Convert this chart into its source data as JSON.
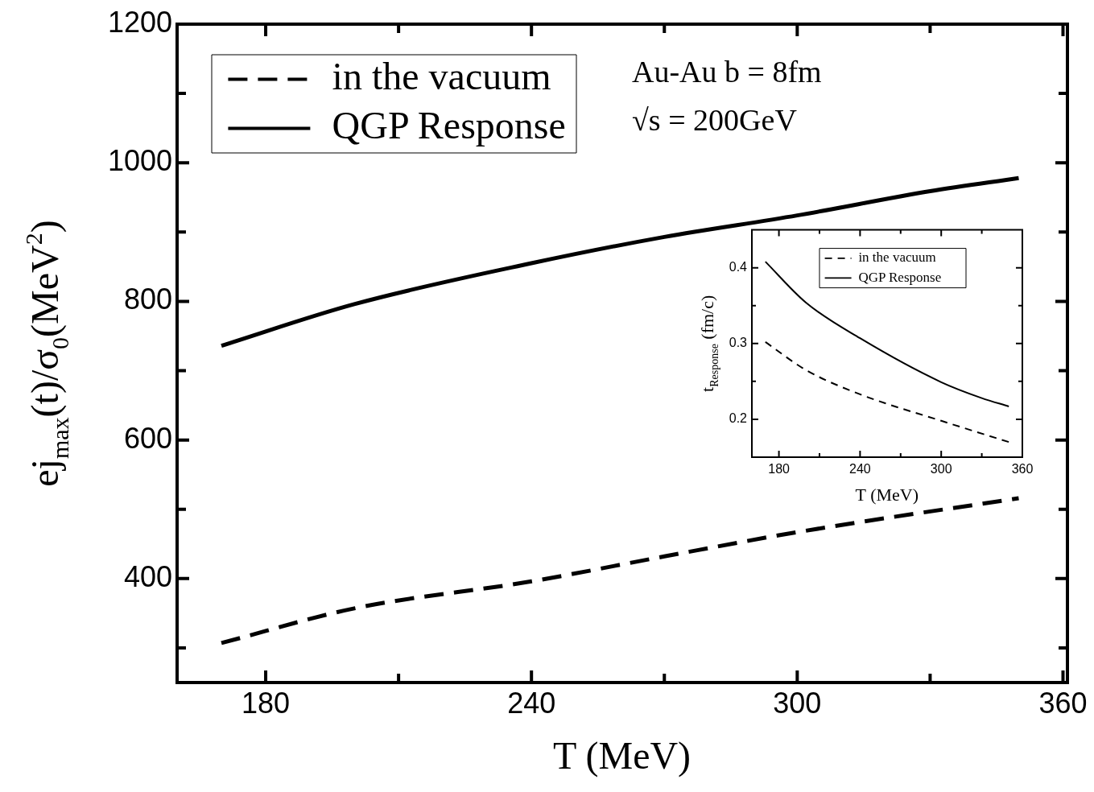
{
  "chart_data": [
    {
      "type": "line",
      "xlabel": "T (MeV)",
      "ylabel": "ej$_{max}$(t)/σ$_{0}$(MeV$^{2}$)",
      "legend": "top left",
      "grid": false,
      "xlim": [
        160,
        361
      ],
      "xticks": [
        180,
        {
          "value": 210,
          "label": null
        },
        240,
        {
          "value": 270,
          "label": null
        },
        300,
        {
          "value": 330,
          "label": null
        },
        360
      ],
      "ylim": [
        250,
        1200
      ],
      "yticks": [
        {
          "value": 300,
          "label": null
        },
        400,
        {
          "value": 500,
          "label": null
        },
        600,
        {
          "value": 700,
          "label": null
        },
        800,
        {
          "value": 900,
          "label": null
        },
        1000,
        {
          "value": 1100,
          "label": null
        },
        1200
      ],
      "annotations": [
        "Au-Au b = 8fm",
        "√s = 200GeV"
      ],
      "series": [
        {
          "name": "in the vacuum",
          "color": "#000000",
          "line_style": "dashed",
          "x": [
            170,
            200,
            240,
            270,
            300,
            350
          ],
          "values": [
            307,
            357,
            396,
            432,
            467,
            516
          ]
        },
        {
          "name": "QGP Response",
          "color": "#000000",
          "line_style": "solid",
          "x": [
            170,
            200,
            240,
            270,
            300,
            330,
            350
          ],
          "values": [
            736,
            796,
            855,
            893,
            924,
            959,
            978
          ]
        }
      ]
    },
    {
      "type": "line",
      "xlabel": "T (MeV)",
      "ylabel": "t$_{Response}$ (fm/c)",
      "legend": "top left",
      "grid": false,
      "xlim": [
        160,
        360
      ],
      "xticks": [
        180,
        {
          "value": 210,
          "label": null
        },
        240,
        {
          "value": 270,
          "label": null
        },
        300,
        {
          "value": 330,
          "label": null
        },
        360
      ],
      "ylim": [
        0.15,
        0.45
      ],
      "yticks": [
        0.2,
        {
          "value": 0.25,
          "label": null
        },
        0.3,
        {
          "value": 0.35,
          "label": null
        },
        0.4
      ],
      "series": [
        {
          "name": "in the vacuum",
          "color": "#000000",
          "line_style": "dashed",
          "x": [
            170,
            200,
            240,
            300,
            350
          ],
          "values": [
            0.302,
            0.265,
            0.233,
            0.198,
            0.17
          ]
        },
        {
          "name": "QGP Response",
          "color": "#000000",
          "line_style": "solid",
          "x": [
            170,
            200,
            240,
            300,
            330,
            350
          ],
          "values": [
            0.408,
            0.354,
            0.307,
            0.249,
            0.228,
            0.217
          ]
        }
      ]
    }
  ]
}
